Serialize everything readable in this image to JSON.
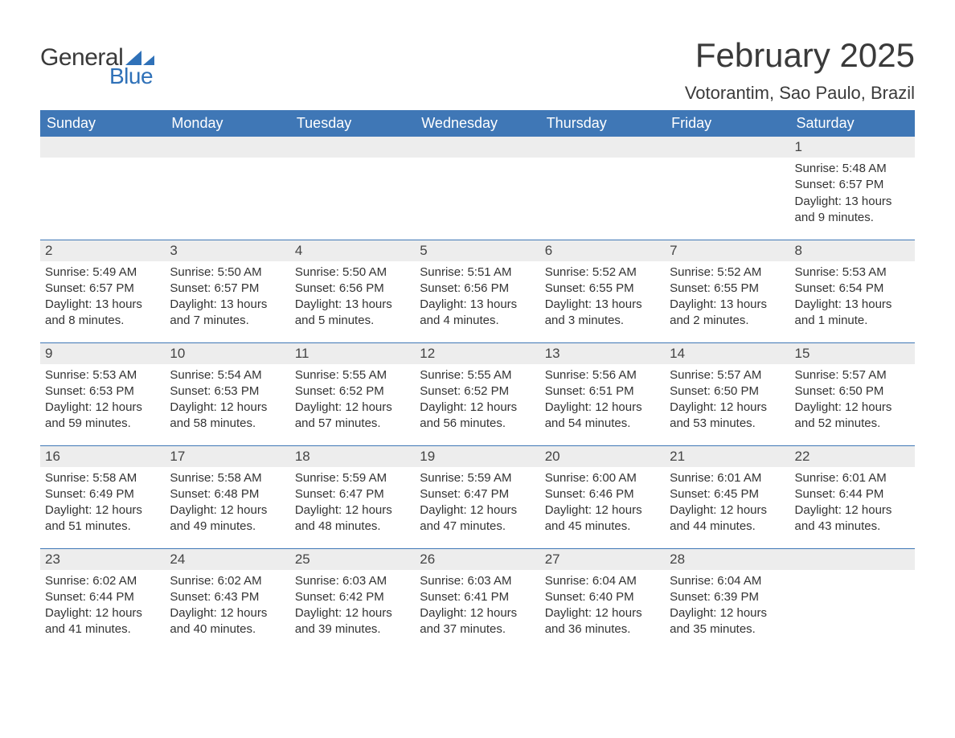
{
  "brand": {
    "word1": "General",
    "word2": "Blue",
    "accent_color": "#2f71b8"
  },
  "title": "February 2025",
  "location": "Votorantim, Sao Paulo, Brazil",
  "colors": {
    "header_bg": "#3f77b6",
    "header_text": "#ffffff",
    "daynum_bg": "#ededed",
    "text": "#333333",
    "rule": "#3f77b6",
    "page_bg": "#ffffff"
  },
  "weekdays": [
    "Sunday",
    "Monday",
    "Tuesday",
    "Wednesday",
    "Thursday",
    "Friday",
    "Saturday"
  ],
  "labels": {
    "sunrise": "Sunrise: ",
    "sunset": "Sunset: ",
    "daylight": "Daylight: "
  },
  "weeks": [
    [
      null,
      null,
      null,
      null,
      null,
      null,
      {
        "n": "1",
        "sunrise": "5:48 AM",
        "sunset": "6:57 PM",
        "daylight": "13 hours and 9 minutes."
      }
    ],
    [
      {
        "n": "2",
        "sunrise": "5:49 AM",
        "sunset": "6:57 PM",
        "daylight": "13 hours and 8 minutes."
      },
      {
        "n": "3",
        "sunrise": "5:50 AM",
        "sunset": "6:57 PM",
        "daylight": "13 hours and 7 minutes."
      },
      {
        "n": "4",
        "sunrise": "5:50 AM",
        "sunset": "6:56 PM",
        "daylight": "13 hours and 5 minutes."
      },
      {
        "n": "5",
        "sunrise": "5:51 AM",
        "sunset": "6:56 PM",
        "daylight": "13 hours and 4 minutes."
      },
      {
        "n": "6",
        "sunrise": "5:52 AM",
        "sunset": "6:55 PM",
        "daylight": "13 hours and 3 minutes."
      },
      {
        "n": "7",
        "sunrise": "5:52 AM",
        "sunset": "6:55 PM",
        "daylight": "13 hours and 2 minutes."
      },
      {
        "n": "8",
        "sunrise": "5:53 AM",
        "sunset": "6:54 PM",
        "daylight": "13 hours and 1 minute."
      }
    ],
    [
      {
        "n": "9",
        "sunrise": "5:53 AM",
        "sunset": "6:53 PM",
        "daylight": "12 hours and 59 minutes."
      },
      {
        "n": "10",
        "sunrise": "5:54 AM",
        "sunset": "6:53 PM",
        "daylight": "12 hours and 58 minutes."
      },
      {
        "n": "11",
        "sunrise": "5:55 AM",
        "sunset": "6:52 PM",
        "daylight": "12 hours and 57 minutes."
      },
      {
        "n": "12",
        "sunrise": "5:55 AM",
        "sunset": "6:52 PM",
        "daylight": "12 hours and 56 minutes."
      },
      {
        "n": "13",
        "sunrise": "5:56 AM",
        "sunset": "6:51 PM",
        "daylight": "12 hours and 54 minutes."
      },
      {
        "n": "14",
        "sunrise": "5:57 AM",
        "sunset": "6:50 PM",
        "daylight": "12 hours and 53 minutes."
      },
      {
        "n": "15",
        "sunrise": "5:57 AM",
        "sunset": "6:50 PM",
        "daylight": "12 hours and 52 minutes."
      }
    ],
    [
      {
        "n": "16",
        "sunrise": "5:58 AM",
        "sunset": "6:49 PM",
        "daylight": "12 hours and 51 minutes."
      },
      {
        "n": "17",
        "sunrise": "5:58 AM",
        "sunset": "6:48 PM",
        "daylight": "12 hours and 49 minutes."
      },
      {
        "n": "18",
        "sunrise": "5:59 AM",
        "sunset": "6:47 PM",
        "daylight": "12 hours and 48 minutes."
      },
      {
        "n": "19",
        "sunrise": "5:59 AM",
        "sunset": "6:47 PM",
        "daylight": "12 hours and 47 minutes."
      },
      {
        "n": "20",
        "sunrise": "6:00 AM",
        "sunset": "6:46 PM",
        "daylight": "12 hours and 45 minutes."
      },
      {
        "n": "21",
        "sunrise": "6:01 AM",
        "sunset": "6:45 PM",
        "daylight": "12 hours and 44 minutes."
      },
      {
        "n": "22",
        "sunrise": "6:01 AM",
        "sunset": "6:44 PM",
        "daylight": "12 hours and 43 minutes."
      }
    ],
    [
      {
        "n": "23",
        "sunrise": "6:02 AM",
        "sunset": "6:44 PM",
        "daylight": "12 hours and 41 minutes."
      },
      {
        "n": "24",
        "sunrise": "6:02 AM",
        "sunset": "6:43 PM",
        "daylight": "12 hours and 40 minutes."
      },
      {
        "n": "25",
        "sunrise": "6:03 AM",
        "sunset": "6:42 PM",
        "daylight": "12 hours and 39 minutes."
      },
      {
        "n": "26",
        "sunrise": "6:03 AM",
        "sunset": "6:41 PM",
        "daylight": "12 hours and 37 minutes."
      },
      {
        "n": "27",
        "sunrise": "6:04 AM",
        "sunset": "6:40 PM",
        "daylight": "12 hours and 36 minutes."
      },
      {
        "n": "28",
        "sunrise": "6:04 AM",
        "sunset": "6:39 PM",
        "daylight": "12 hours and 35 minutes."
      },
      null
    ]
  ]
}
